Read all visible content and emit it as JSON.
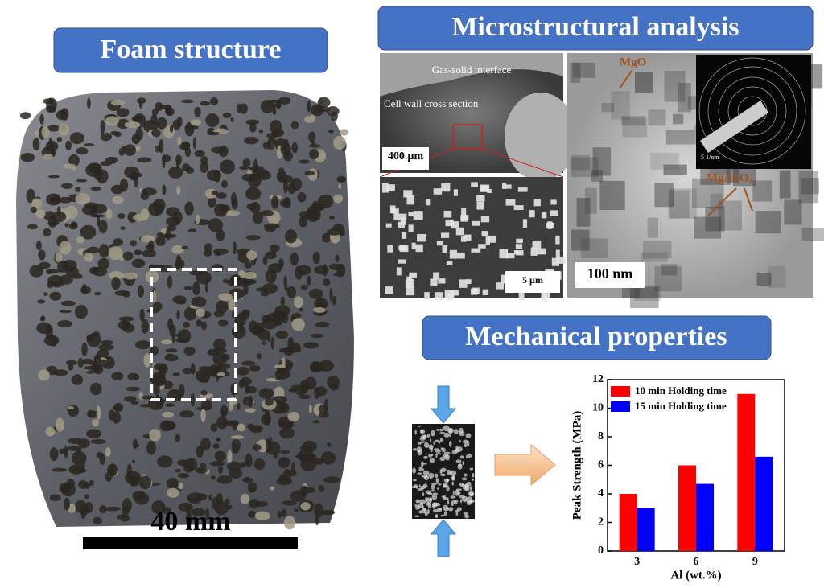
{
  "panels": {
    "foam": {
      "title": "Foam structure",
      "scale": "40 mm"
    },
    "micro": {
      "title": "Microstructural analysis",
      "sem_top": {
        "label_a": "Gas-solid interface",
        "label_b": "Cell wall cross section",
        "scale": "400 µm"
      },
      "sem_bottom": {
        "scale": "5 µm"
      },
      "tem": {
        "phase_a": "MgO",
        "phase_b": "MgAl₂O₄",
        "scale": "100 nm",
        "saed_scale": "5 1/nm"
      }
    },
    "mech": {
      "title": "Mechanical properties"
    }
  },
  "chart_data": {
    "type": "bar",
    "xlabel": "Al (wt.%)",
    "ylabel": "Peak Strength (MPa)",
    "categories": [
      "3",
      "6",
      "9"
    ],
    "series": [
      {
        "name": "10 min Holding time",
        "color": "#ff0000",
        "values": [
          4,
          6,
          11
        ]
      },
      {
        "name": "15 min Holding time",
        "color": "#0000ff",
        "values": [
          3,
          4.7,
          6.6
        ]
      }
    ],
    "ylim": [
      0,
      12
    ],
    "yticks": [
      0,
      2,
      4,
      6,
      8,
      10,
      12
    ],
    "legend": "upper left"
  }
}
